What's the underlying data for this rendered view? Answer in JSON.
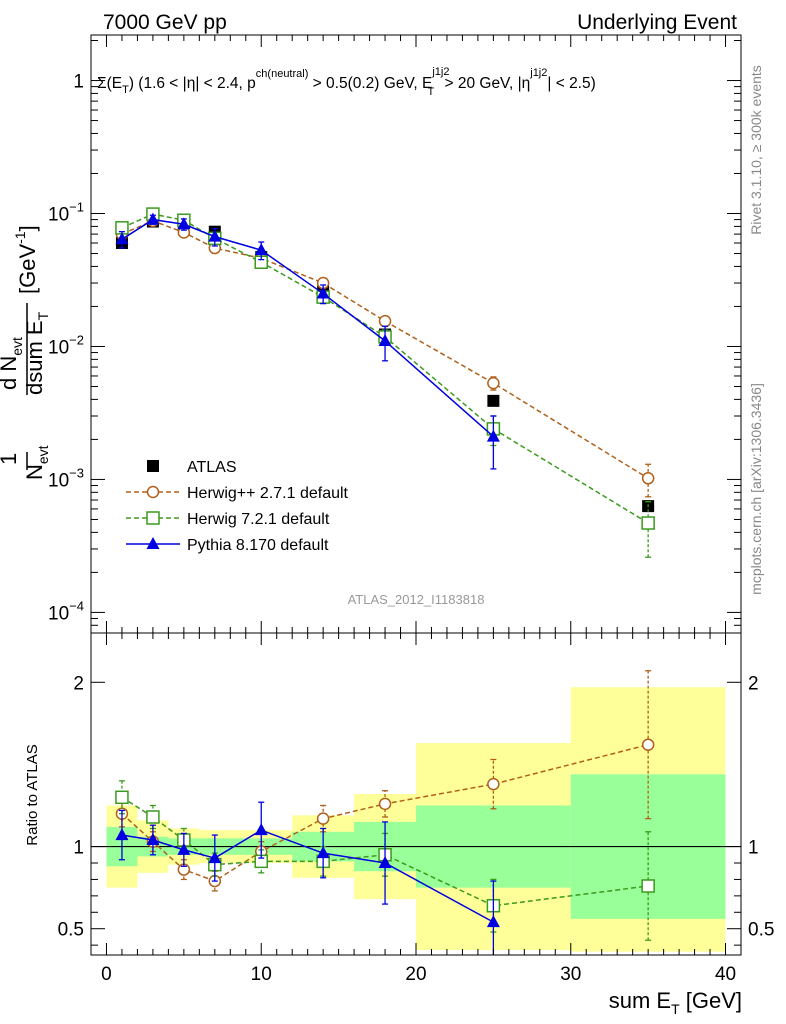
{
  "header": {
    "left": "7000 GeV pp",
    "right": "Underlying Event"
  },
  "side_labels": {
    "rivet": "Rivet 3.1.10, ≥ 300k events",
    "mcplots": "mcplots.cern.ch [arXiv:1306.3436]"
  },
  "analysis_id": "ATLAS_2012_I1183818",
  "colors": {
    "atlas": "#000000",
    "herwigpp": "#b0601a",
    "herwig7": "#3b9a1e",
    "pythia": "#0000e0",
    "band_inner": "#99ff99",
    "band_outer": "#ffff99"
  },
  "chart_data": [
    {
      "type": "scatter",
      "panel": "main",
      "title": "Σ(E_T) (1.6 < |η| < 2.4, p^ch(neutral) > 0.5(0.2) GeV, E_T^j1j2 > 20 GeV, |η^j1j2| < 2.5)",
      "title_parts": {
        "sigma": "Σ(E",
        "t_sub": "T",
        "a": ") (1.6 < |η| < 2.4, p",
        "ch_sup": "ch(neutral)",
        "b": " > 0.5(0.2) GeV, E",
        "j_sup": "j1j2",
        "t2_sub": "T",
        "c": " > 20 GeV, |η",
        "j2_sup": "j1j2",
        "d": "| < 2.5)"
      },
      "ylabel": "1/N_evt dN_evt/dsum E_T [GeV^-1]",
      "ylabel_parts": {
        "one": "1",
        "n": "N",
        "n_sub": "evt",
        "d_num": "d N",
        "d_num_sub": "evt",
        "d_den": "dsum E",
        "d_den_sub": "T",
        "unit": "[GeV",
        "unit_sup": "-1",
        "unit_close": "]"
      },
      "xlim": [
        -1,
        41
      ],
      "ylim": [
        7e-05,
        2.2
      ],
      "yscale": "log",
      "ytick_labels": [
        {
          "value": 0.0001,
          "base": "10",
          "exp": "−4"
        },
        {
          "value": 0.001,
          "base": "10",
          "exp": "−3"
        },
        {
          "value": 0.01,
          "base": "10",
          "exp": "−2"
        },
        {
          "value": 0.1,
          "base": "10",
          "exp": "−1"
        },
        {
          "value": 1,
          "base": "1",
          "exp": ""
        }
      ],
      "legend_position": "lower-left",
      "series": [
        {
          "name": "ATLAS",
          "key": "atlas",
          "marker": "filled-square",
          "x": [
            1,
            3,
            5,
            7,
            10,
            14,
            18,
            25,
            35
          ],
          "y": [
            0.06,
            0.087,
            0.085,
            0.073,
            0.047,
            0.026,
            0.0123,
            0.0039,
            0.00063
          ],
          "yerr": [
            0.004,
            0.004,
            0.004,
            0.004,
            0.003,
            0.002,
            0.001,
            0.0003,
            6e-05
          ]
        },
        {
          "name": "Herwig++ 2.7.1 default",
          "key": "herwigpp",
          "marker": "open-circle",
          "dash": true,
          "x": [
            1,
            3,
            5,
            7,
            10,
            14,
            18,
            25,
            35
          ],
          "y": [
            0.07,
            0.088,
            0.072,
            0.055,
            0.046,
            0.03,
            0.0155,
            0.0053,
            0.00102
          ],
          "yerr": [
            0.006,
            0.005,
            0.004,
            0.004,
            0.003,
            0.002,
            0.0012,
            0.0006,
            0.00028
          ]
        },
        {
          "name": "Herwig 7.2.1 default",
          "key": "herwig7",
          "marker": "open-square",
          "dash": true,
          "x": [
            1,
            3,
            5,
            7,
            10,
            14,
            18,
            25,
            35
          ],
          "y": [
            0.078,
            0.099,
            0.089,
            0.065,
            0.043,
            0.0235,
            0.0118,
            0.0024,
            0.00047
          ],
          "yerr": [
            0.007,
            0.006,
            0.005,
            0.005,
            0.004,
            0.002,
            0.0015,
            0.0006,
            0.00021
          ]
        },
        {
          "name": "Pythia 8.170 default",
          "key": "pythia",
          "marker": "filled-triangle",
          "x": [
            1,
            3,
            5,
            7,
            10,
            14,
            18,
            25
          ],
          "y": [
            0.064,
            0.09,
            0.083,
            0.067,
            0.053,
            0.025,
            0.011,
            0.0021
          ],
          "yerr": [
            0.009,
            0.007,
            0.008,
            0.01,
            0.008,
            0.004,
            0.0032,
            0.0009
          ]
        }
      ]
    },
    {
      "type": "scatter",
      "panel": "ratio",
      "xlabel": "sum E_T [GeV]",
      "xlabel_parts": {
        "main": "sum E",
        "sub": "T",
        "unit": " [GeV]"
      },
      "ylabel": "Ratio to ATLAS",
      "xlim": [
        -1,
        41
      ],
      "ylim": [
        0.34,
        2.3
      ],
      "yticks": [
        0.5,
        1,
        2
      ],
      "ytick_labels": [
        "0.5",
        "1",
        "2"
      ],
      "xticks": [
        0,
        10,
        20,
        30,
        40
      ],
      "xtick_labels": [
        "0",
        "10",
        "20",
        "30",
        "40"
      ],
      "bands": [
        {
          "x0": 0,
          "x1": 2,
          "inner": [
            0.88,
            1.12
          ],
          "outer": [
            0.75,
            1.25
          ]
        },
        {
          "x0": 2,
          "x1": 4,
          "inner": [
            0.94,
            1.06
          ],
          "outer": [
            0.84,
            1.16
          ]
        },
        {
          "x0": 4,
          "x1": 6,
          "inner": [
            0.95,
            1.05
          ],
          "outer": [
            0.89,
            1.11
          ]
        },
        {
          "x0": 6,
          "x1": 8,
          "inner": [
            0.95,
            1.05
          ],
          "outer": [
            0.9,
            1.1
          ]
        },
        {
          "x0": 8,
          "x1": 12,
          "inner": [
            0.95,
            1.05
          ],
          "outer": [
            0.9,
            1.1
          ]
        },
        {
          "x0": 12,
          "x1": 16,
          "inner": [
            0.91,
            1.09
          ],
          "outer": [
            0.81,
            1.19
          ]
        },
        {
          "x0": 16,
          "x1": 20,
          "inner": [
            0.85,
            1.15
          ],
          "outer": [
            0.68,
            1.32
          ]
        },
        {
          "x0": 20,
          "x1": 30,
          "inner": [
            0.75,
            1.25
          ],
          "outer": [
            0.37,
            1.63
          ]
        },
        {
          "x0": 30,
          "x1": 40,
          "inner": [
            0.56,
            1.44
          ],
          "outer": [
            0.36,
            1.97
          ]
        }
      ],
      "series": [
        {
          "key": "herwigpp",
          "marker": "open-circle",
          "dash": true,
          "x": [
            1,
            3,
            5,
            7,
            10,
            14,
            18,
            25,
            35
          ],
          "y": [
            1.2,
            1.03,
            0.86,
            0.79,
            0.97,
            1.17,
            1.26,
            1.38,
            1.62
          ],
          "yerr": [
            0.08,
            0.06,
            0.06,
            0.06,
            0.06,
            0.08,
            0.08,
            0.15,
            0.45
          ]
        },
        {
          "key": "herwig7",
          "marker": "open-square",
          "dash": true,
          "x": [
            1,
            3,
            5,
            7,
            10,
            14,
            18,
            25,
            35
          ],
          "y": [
            1.3,
            1.18,
            1.04,
            0.89,
            0.91,
            0.91,
            0.95,
            0.64,
            0.76
          ],
          "yerr": [
            0.1,
            0.07,
            0.07,
            0.07,
            0.07,
            0.09,
            0.13,
            0.16,
            0.33
          ]
        },
        {
          "key": "pythia",
          "marker": "filled-triangle",
          "x": [
            1,
            3,
            5,
            7,
            10,
            14,
            18,
            25
          ],
          "y": [
            1.07,
            1.04,
            0.98,
            0.93,
            1.1,
            0.96,
            0.9,
            0.54
          ],
          "yerr": [
            0.15,
            0.09,
            0.1,
            0.14,
            0.17,
            0.15,
            0.25,
            0.25
          ]
        }
      ]
    }
  ]
}
